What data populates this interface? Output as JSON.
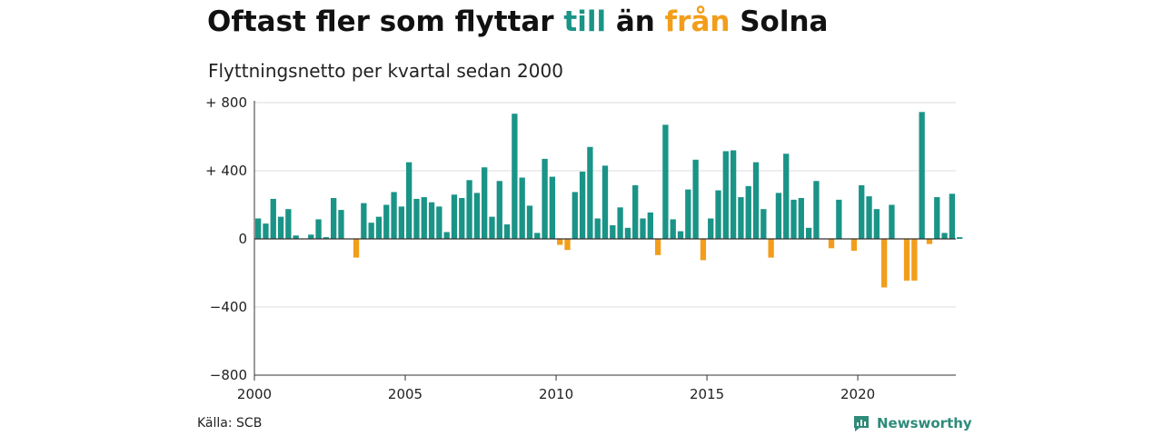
{
  "header": {
    "title_parts": [
      {
        "text": "Oftast fler som flyttar ",
        "color": "#111111"
      },
      {
        "text": "till",
        "color": "#1a9487"
      },
      {
        "text": " än ",
        "color": "#111111"
      },
      {
        "text": "från",
        "color": "#f29e1b"
      },
      {
        "text": " Solna",
        "color": "#111111"
      }
    ],
    "subtitle": "Flyttningsnetto per kvartal sedan 2000"
  },
  "footer": {
    "source": "Källa: SCB",
    "brand": "Newsworthy",
    "brand_icon": "newsworthy-logo-icon"
  },
  "chart_data": {
    "type": "bar",
    "title": "Oftast fler som flyttar till än från Solna",
    "subtitle": "Flyttningsnetto per kvartal sedan 2000",
    "x_ticks": [
      2000,
      2005,
      2010,
      2015,
      2020
    ],
    "y_ticks": [
      {
        "value": 800,
        "label": "+ 800"
      },
      {
        "value": 400,
        "label": "+ 400"
      },
      {
        "value": 0,
        "label": "0"
      },
      {
        "value": -400,
        "label": "−400"
      },
      {
        "value": -800,
        "label": "−800"
      }
    ],
    "ylim": [
      -800,
      800
    ],
    "xlim": [
      2000,
      2023.25
    ],
    "grid": true,
    "colors": {
      "positive": "#1a9487",
      "negative": "#f29e1b"
    },
    "series": [
      {
        "start": "2000 Q1",
        "periods_per_year": 4,
        "values": [
          120,
          90,
          235,
          130,
          175,
          20,
          0,
          25,
          115,
          10,
          240,
          170,
          0,
          -110,
          210,
          95,
          130,
          200,
          275,
          190,
          450,
          235,
          245,
          215,
          190,
          40,
          260,
          240,
          345,
          270,
          420,
          130,
          340,
          85,
          735,
          360,
          195,
          35,
          470,
          365,
          -35,
          -65,
          275,
          395,
          540,
          120,
          430,
          80,
          185,
          65,
          315,
          120,
          155,
          -95,
          670,
          115,
          45,
          290,
          465,
          -125,
          120,
          285,
          515,
          520,
          245,
          310,
          450,
          175,
          -110,
          270,
          500,
          230,
          240,
          65,
          340,
          0,
          -55,
          230,
          0,
          -70,
          315,
          250,
          175,
          -285,
          200,
          0,
          -245,
          -245,
          745,
          -30,
          245,
          35,
          265,
          10
        ]
      }
    ]
  }
}
